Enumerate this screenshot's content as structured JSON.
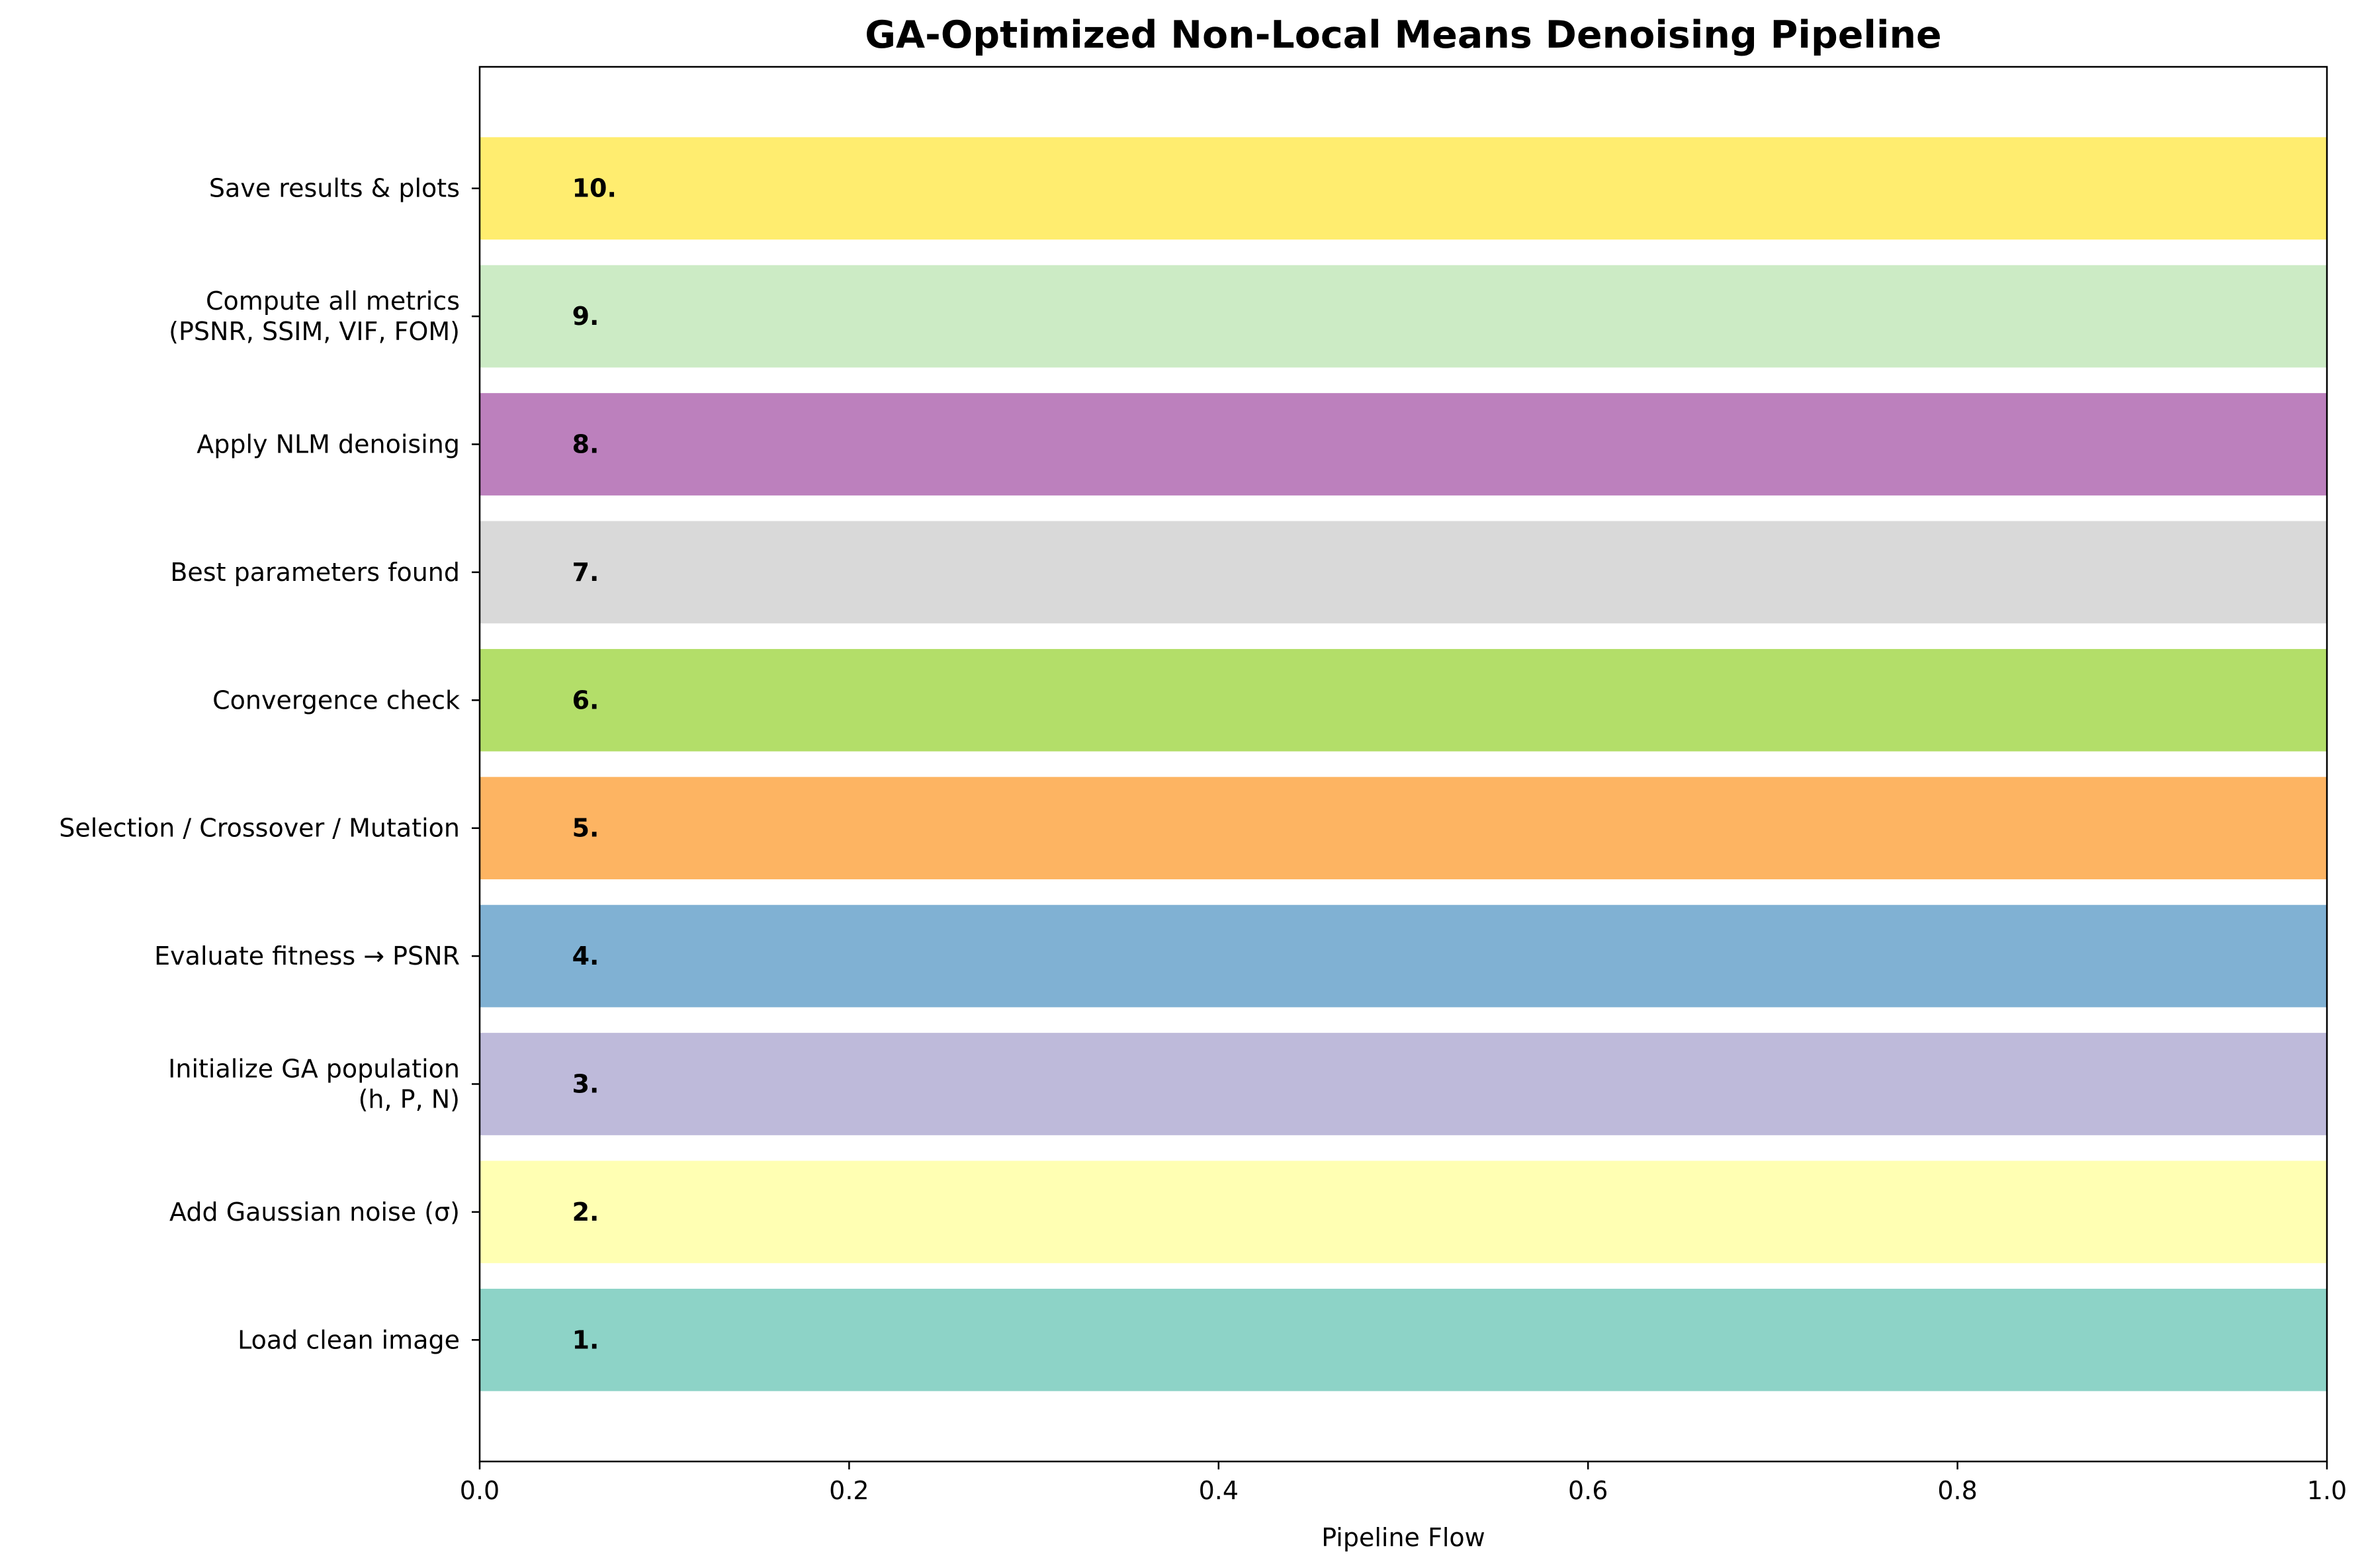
{
  "chart_data": {
    "type": "bar",
    "orientation": "horizontal",
    "title": "GA-Optimized Non-Local Means Denoising Pipeline",
    "xlabel": "Pipeline Flow",
    "ylabel": "",
    "xlim": [
      0.0,
      1.0
    ],
    "xticks": [
      "0.0",
      "0.2",
      "0.4",
      "0.6",
      "0.8",
      "1.0"
    ],
    "grid": false,
    "legend": "none",
    "categories": [
      [
        "Load clean image"
      ],
      [
        "Add Gaussian noise (σ)"
      ],
      [
        "Initialize GA population",
        "(h, P, N)"
      ],
      [
        "Evaluate fitness → PSNR"
      ],
      [
        "Selection / Crossover / Mutation"
      ],
      [
        "Convergence check"
      ],
      [
        "Best parameters found"
      ],
      [
        "Apply NLM denoising"
      ],
      [
        "Compute all metrics",
        "(PSNR, SSIM, VIF, FOM)"
      ],
      [
        "Save results & plots"
      ]
    ],
    "values": [
      1,
      1,
      1,
      1,
      1,
      1,
      1,
      1,
      1,
      1
    ],
    "bar_labels": [
      "1.",
      "2.",
      "3.",
      "4.",
      "5.",
      "6.",
      "7.",
      "8.",
      "9.",
      "10."
    ],
    "colors": [
      "#8dd3c7",
      "#ffffb3",
      "#bebada",
      "#80b1d3",
      "#fdb462",
      "#b3de69",
      "#d9d9d9",
      "#bc80bd",
      "#ccebc5",
      "#ffed6f"
    ]
  }
}
